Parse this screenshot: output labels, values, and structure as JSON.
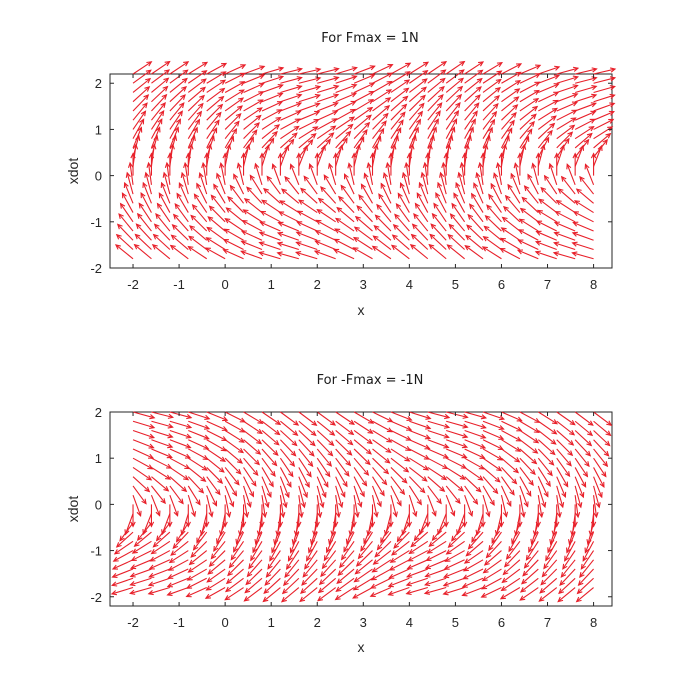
{
  "chart_data": [
    {
      "type": "quiver",
      "title": "For Fmax = 1N",
      "xlabel": "x",
      "ylabel": "xdot",
      "xlim": [
        -2.5,
        8.4
      ],
      "ylim": [
        -2,
        2.2
      ],
      "xticks": [
        -2,
        -1,
        0,
        1,
        2,
        3,
        4,
        5,
        6,
        7,
        8
      ],
      "yticks": [
        -2,
        -1,
        0,
        1,
        2
      ],
      "grid": false,
      "arrow_color": "#e8202a",
      "force": 1,
      "vector_field": {
        "dx": "xdot",
        "dxdot": "F - 0.5*sin(x)",
        "x": {
          "start": -2.0,
          "step": 0.4,
          "count": 26
        },
        "xdot": {
          "start": -1.8,
          "step": 0.2,
          "count": 21
        }
      }
    },
    {
      "type": "quiver",
      "title": "For -Fmax = -1N",
      "xlabel": "x",
      "ylabel": "xdot",
      "xlim": [
        -2.5,
        8.4
      ],
      "ylim": [
        -2.2,
        2
      ],
      "xticks": [
        -2,
        -1,
        0,
        1,
        2,
        3,
        4,
        5,
        6,
        7,
        8
      ],
      "yticks": [
        -2,
        -1,
        0,
        1,
        2
      ],
      "grid": false,
      "arrow_color": "#e8202a",
      "force": -1,
      "vector_field": {
        "dx": "xdot",
        "dxdot": "F - 0.5*sin(x)",
        "x": {
          "start": -2.0,
          "step": 0.4,
          "count": 26
        },
        "xdot": {
          "start": -1.8,
          "step": 0.2,
          "count": 21
        }
      }
    }
  ]
}
